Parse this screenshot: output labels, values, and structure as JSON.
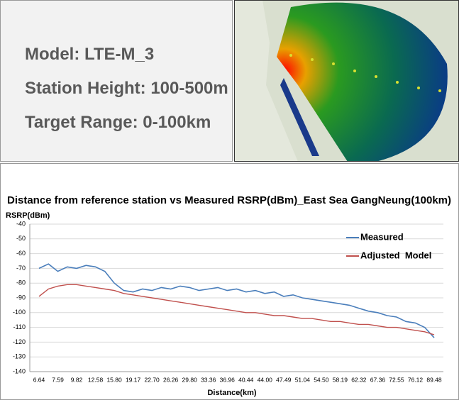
{
  "info_panel": {
    "lines": [
      "Model: LTE-M_3",
      "Station Height: 100-500m",
      "Target Range: 0-100km"
    ]
  },
  "chart_data": {
    "type": "line",
    "title": "Distance from reference station vs Measured RSRP(dBm)_East Sea GangNeung(100km)",
    "y_label": "RSRP(dBm)",
    "x_label": "Distance(km)",
    "categories": [
      "6.64",
      null,
      "7.59",
      null,
      "9.82",
      null,
      "12.58",
      null,
      "15.80",
      null,
      "19.17",
      null,
      "22.70",
      null,
      "26.26",
      null,
      "29.80",
      null,
      "33.36",
      null,
      "36.96",
      null,
      "40.44",
      null,
      "44.00",
      null,
      "47.49",
      null,
      "51.04",
      null,
      "54.50",
      null,
      "58.19",
      null,
      "62.32",
      null,
      "67.36",
      null,
      "72.55",
      null,
      "76.12",
      null,
      "89.48"
    ],
    "series": [
      {
        "name": "Measured",
        "color": "#4a7ebb",
        "values": [
          -70,
          -67,
          -72,
          -69,
          -70,
          -68,
          -69,
          -72,
          -80,
          -85,
          -86,
          -84,
          -85,
          -83,
          -84,
          -82,
          -83,
          -85,
          -84,
          -83,
          -85,
          -84,
          -86,
          -85,
          -87,
          -86,
          -89,
          -88,
          -90,
          -91,
          -92,
          -93,
          -94,
          -95,
          -97,
          -99,
          -100,
          -102,
          -103,
          -106,
          -107,
          -110,
          -117
        ]
      },
      {
        "name": "Adjusted  Model",
        "color": "#c0504d",
        "values": [
          -89,
          -84,
          -82,
          -81,
          -81,
          -82,
          -83,
          -84,
          -85,
          -87,
          -88,
          -89,
          -90,
          -91,
          -92,
          -93,
          -94,
          -95,
          -96,
          -97,
          -98,
          -99,
          -100,
          -100,
          -101,
          -102,
          -102,
          -103,
          -104,
          -104,
          -105,
          -106,
          -106,
          -107,
          -108,
          -108,
          -109,
          -110,
          -110,
          -111,
          -112,
          -113,
          -115
        ]
      }
    ],
    "ylim": [
      -140,
      -40
    ],
    "yticks": [
      -140,
      -130,
      -120,
      -110,
      -100,
      -90,
      -80,
      -70,
      -60,
      -50,
      -40
    ],
    "grid": true,
    "legend": "top-right"
  }
}
